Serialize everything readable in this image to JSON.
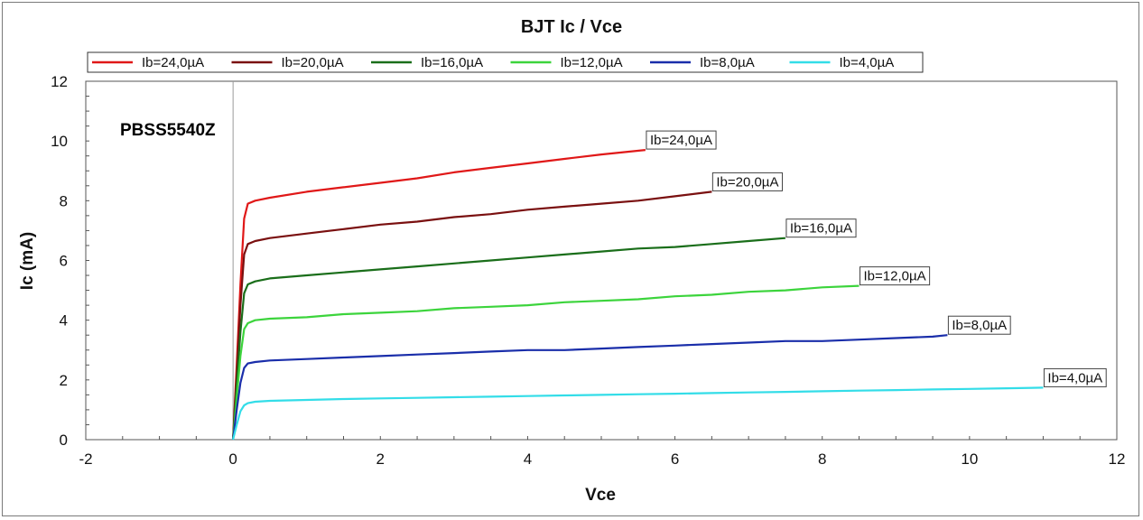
{
  "chart_data": {
    "type": "line",
    "title": "BJT Ic / Vce",
    "xlabel": "Vce",
    "ylabel": "Ic (mA)",
    "annotation": "PBSS5540Z",
    "xlim": [
      -2,
      12
    ],
    "ylim": [
      0,
      12
    ],
    "xticks": [
      -2,
      0,
      2,
      4,
      6,
      8,
      10,
      12
    ],
    "yticks": [
      0,
      2,
      4,
      6,
      8,
      10,
      12
    ],
    "grid": true,
    "legend_position": "top",
    "series": [
      {
        "name": "Ib=24,0µA",
        "color": "#e01818",
        "x": [
          0,
          0.05,
          0.1,
          0.15,
          0.2,
          0.3,
          0.5,
          1,
          1.5,
          2,
          2.5,
          3,
          3.5,
          4,
          4.5,
          5,
          5.6
        ],
        "y": [
          0,
          2.5,
          5.2,
          7.4,
          7.9,
          8.0,
          8.1,
          8.3,
          8.45,
          8.6,
          8.75,
          8.95,
          9.1,
          9.25,
          9.4,
          9.55,
          9.7
        ]
      },
      {
        "name": "Ib=20,0µA",
        "color": "#7a1010",
        "x": [
          0,
          0.05,
          0.1,
          0.15,
          0.2,
          0.3,
          0.5,
          1,
          1.5,
          2,
          2.5,
          3,
          3.5,
          4,
          4.5,
          5,
          5.5,
          6,
          6.5
        ],
        "y": [
          0,
          2.2,
          4.5,
          6.2,
          6.55,
          6.65,
          6.75,
          6.9,
          7.05,
          7.2,
          7.3,
          7.45,
          7.55,
          7.7,
          7.8,
          7.9,
          8.0,
          8.15,
          8.3
        ]
      },
      {
        "name": "Ib=16,0µA",
        "color": "#1a6e1a",
        "x": [
          0,
          0.05,
          0.1,
          0.15,
          0.2,
          0.3,
          0.5,
          1,
          1.5,
          2,
          2.5,
          3,
          3.5,
          4,
          4.5,
          5,
          5.5,
          6,
          6.5,
          7,
          7.5
        ],
        "y": [
          0,
          1.8,
          3.6,
          4.9,
          5.2,
          5.3,
          5.4,
          5.5,
          5.6,
          5.7,
          5.8,
          5.9,
          6.0,
          6.1,
          6.2,
          6.3,
          6.4,
          6.45,
          6.55,
          6.65,
          6.75
        ]
      },
      {
        "name": "Ib=12,0µA",
        "color": "#3cd43c",
        "x": [
          0,
          0.05,
          0.1,
          0.15,
          0.2,
          0.3,
          0.5,
          1,
          1.5,
          2,
          2.5,
          3,
          3.5,
          4,
          4.5,
          5,
          5.5,
          6,
          6.5,
          7,
          7.5,
          8,
          8.5
        ],
        "y": [
          0,
          1.4,
          2.8,
          3.7,
          3.9,
          4.0,
          4.05,
          4.1,
          4.2,
          4.25,
          4.3,
          4.4,
          4.45,
          4.5,
          4.6,
          4.65,
          4.7,
          4.8,
          4.85,
          4.95,
          5.0,
          5.1,
          5.15
        ]
      },
      {
        "name": "Ib=8,0µA",
        "color": "#1a2eaa",
        "x": [
          0,
          0.05,
          0.1,
          0.15,
          0.2,
          0.3,
          0.5,
          1,
          1.5,
          2,
          2.5,
          3,
          3.5,
          4,
          4.5,
          5,
          5.5,
          6,
          6.5,
          7,
          7.5,
          8,
          8.5,
          9,
          9.5,
          9.7
        ],
        "y": [
          0,
          1.0,
          1.9,
          2.4,
          2.55,
          2.6,
          2.65,
          2.7,
          2.75,
          2.8,
          2.85,
          2.9,
          2.95,
          3.0,
          3.0,
          3.05,
          3.1,
          3.15,
          3.2,
          3.25,
          3.3,
          3.3,
          3.35,
          3.4,
          3.45,
          3.5
        ]
      },
      {
        "name": "Ib=4,0µA",
        "color": "#33dde8",
        "x": [
          0,
          0.05,
          0.1,
          0.15,
          0.2,
          0.3,
          0.5,
          1,
          1.5,
          2,
          2.5,
          3,
          3.5,
          4,
          4.5,
          5,
          5.5,
          6,
          6.5,
          7,
          7.5,
          8,
          8.5,
          9,
          9.5,
          10,
          10.5,
          11
        ],
        "y": [
          0,
          0.5,
          0.95,
          1.15,
          1.22,
          1.27,
          1.3,
          1.33,
          1.36,
          1.38,
          1.4,
          1.42,
          1.44,
          1.46,
          1.48,
          1.5,
          1.52,
          1.54,
          1.56,
          1.58,
          1.6,
          1.62,
          1.64,
          1.66,
          1.68,
          1.7,
          1.72,
          1.74
        ]
      }
    ]
  }
}
